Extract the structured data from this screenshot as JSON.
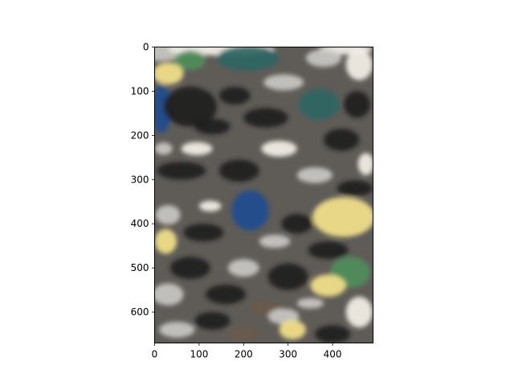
{
  "chart_data": {
    "type": "heatmap",
    "title": "",
    "xlabel": "",
    "ylabel": "",
    "xlim": [
      0,
      491
    ],
    "ylim": [
      670,
      0
    ],
    "y_axis_inverted": true,
    "xticks": [
      0,
      100,
      200,
      300,
      400
    ],
    "yticks": [
      0,
      100,
      200,
      300,
      400,
      500,
      600
    ],
    "grid": false,
    "legend": "none",
    "image_description_colors": {
      "base": "#5f5b57",
      "dark": "#1f1e1c",
      "light": "#c9c8c3",
      "white": "#f4f1e8",
      "yellow": "#f2e28a",
      "blue": "#1f4d8f",
      "teal": "#2e6663",
      "green": "#4f8e5a",
      "brown": "#6a5a49"
    },
    "patches": [
      {
        "x": 10,
        "y": 10,
        "rx": 60,
        "ry": 22,
        "color": "light"
      },
      {
        "x": 150,
        "y": 5,
        "rx": 120,
        "ry": 14,
        "color": "white"
      },
      {
        "x": 430,
        "y": 5,
        "rx": 60,
        "ry": 12,
        "color": "white"
      },
      {
        "x": 210,
        "y": 25,
        "rx": 70,
        "ry": 28,
        "color": "teal"
      },
      {
        "x": 80,
        "y": 30,
        "rx": 35,
        "ry": 22,
        "color": "green"
      },
      {
        "x": 30,
        "y": 60,
        "rx": 35,
        "ry": 25,
        "color": "yellow"
      },
      {
        "x": 380,
        "y": 25,
        "rx": 40,
        "ry": 20,
        "color": "light"
      },
      {
        "x": 460,
        "y": 40,
        "rx": 30,
        "ry": 35,
        "color": "white"
      },
      {
        "x": 15,
        "y": 140,
        "rx": 22,
        "ry": 55,
        "color": "blue"
      },
      {
        "x": 80,
        "y": 135,
        "rx": 60,
        "ry": 45,
        "color": "dark"
      },
      {
        "x": 180,
        "y": 110,
        "rx": 35,
        "ry": 20,
        "color": "dark"
      },
      {
        "x": 290,
        "y": 80,
        "rx": 45,
        "ry": 18,
        "color": "light"
      },
      {
        "x": 370,
        "y": 130,
        "rx": 45,
        "ry": 35,
        "color": "teal"
      },
      {
        "x": 455,
        "y": 130,
        "rx": 30,
        "ry": 30,
        "color": "dark"
      },
      {
        "x": 250,
        "y": 160,
        "rx": 50,
        "ry": 22,
        "color": "dark"
      },
      {
        "x": 130,
        "y": 180,
        "rx": 40,
        "ry": 18,
        "color": "dark"
      },
      {
        "x": 95,
        "y": 230,
        "rx": 35,
        "ry": 15,
        "color": "white"
      },
      {
        "x": 20,
        "y": 230,
        "rx": 20,
        "ry": 14,
        "color": "light"
      },
      {
        "x": 280,
        "y": 230,
        "rx": 40,
        "ry": 18,
        "color": "white"
      },
      {
        "x": 420,
        "y": 210,
        "rx": 40,
        "ry": 25,
        "color": "dark"
      },
      {
        "x": 475,
        "y": 265,
        "rx": 18,
        "ry": 25,
        "color": "white"
      },
      {
        "x": 60,
        "y": 280,
        "rx": 55,
        "ry": 20,
        "color": "dark"
      },
      {
        "x": 190,
        "y": 280,
        "rx": 45,
        "ry": 25,
        "color": "dark"
      },
      {
        "x": 360,
        "y": 290,
        "rx": 40,
        "ry": 18,
        "color": "light"
      },
      {
        "x": 450,
        "y": 320,
        "rx": 40,
        "ry": 18,
        "color": "dark"
      },
      {
        "x": 215,
        "y": 370,
        "rx": 42,
        "ry": 45,
        "color": "blue"
      },
      {
        "x": 125,
        "y": 360,
        "rx": 25,
        "ry": 12,
        "color": "white"
      },
      {
        "x": 30,
        "y": 380,
        "rx": 28,
        "ry": 22,
        "color": "light"
      },
      {
        "x": 425,
        "y": 385,
        "rx": 70,
        "ry": 45,
        "color": "yellow"
      },
      {
        "x": 320,
        "y": 400,
        "rx": 35,
        "ry": 22,
        "color": "dark"
      },
      {
        "x": 110,
        "y": 420,
        "rx": 45,
        "ry": 20,
        "color": "dark"
      },
      {
        "x": 25,
        "y": 440,
        "rx": 25,
        "ry": 28,
        "color": "yellow"
      },
      {
        "x": 270,
        "y": 440,
        "rx": 35,
        "ry": 15,
        "color": "light"
      },
      {
        "x": 390,
        "y": 460,
        "rx": 45,
        "ry": 20,
        "color": "dark"
      },
      {
        "x": 80,
        "y": 500,
        "rx": 45,
        "ry": 25,
        "color": "dark"
      },
      {
        "x": 200,
        "y": 500,
        "rx": 35,
        "ry": 20,
        "color": "light"
      },
      {
        "x": 300,
        "y": 520,
        "rx": 45,
        "ry": 30,
        "color": "dark"
      },
      {
        "x": 440,
        "y": 510,
        "rx": 45,
        "ry": 35,
        "color": "green"
      },
      {
        "x": 390,
        "y": 540,
        "rx": 40,
        "ry": 25,
        "color": "yellow"
      },
      {
        "x": 30,
        "y": 560,
        "rx": 35,
        "ry": 25,
        "color": "light"
      },
      {
        "x": 160,
        "y": 560,
        "rx": 45,
        "ry": 22,
        "color": "dark"
      },
      {
        "x": 250,
        "y": 590,
        "rx": 35,
        "ry": 15,
        "color": "brown"
      },
      {
        "x": 290,
        "y": 610,
        "rx": 35,
        "ry": 18,
        "color": "light"
      },
      {
        "x": 460,
        "y": 600,
        "rx": 30,
        "ry": 35,
        "color": "white"
      },
      {
        "x": 310,
        "y": 640,
        "rx": 30,
        "ry": 22,
        "color": "yellow"
      },
      {
        "x": 130,
        "y": 620,
        "rx": 40,
        "ry": 20,
        "color": "dark"
      },
      {
        "x": 50,
        "y": 640,
        "rx": 40,
        "ry": 18,
        "color": "light"
      },
      {
        "x": 400,
        "y": 650,
        "rx": 40,
        "ry": 20,
        "color": "dark"
      },
      {
        "x": 200,
        "y": 650,
        "rx": 35,
        "ry": 15,
        "color": "brown"
      },
      {
        "x": 350,
        "y": 580,
        "rx": 30,
        "ry": 12,
        "color": "light"
      }
    ]
  }
}
